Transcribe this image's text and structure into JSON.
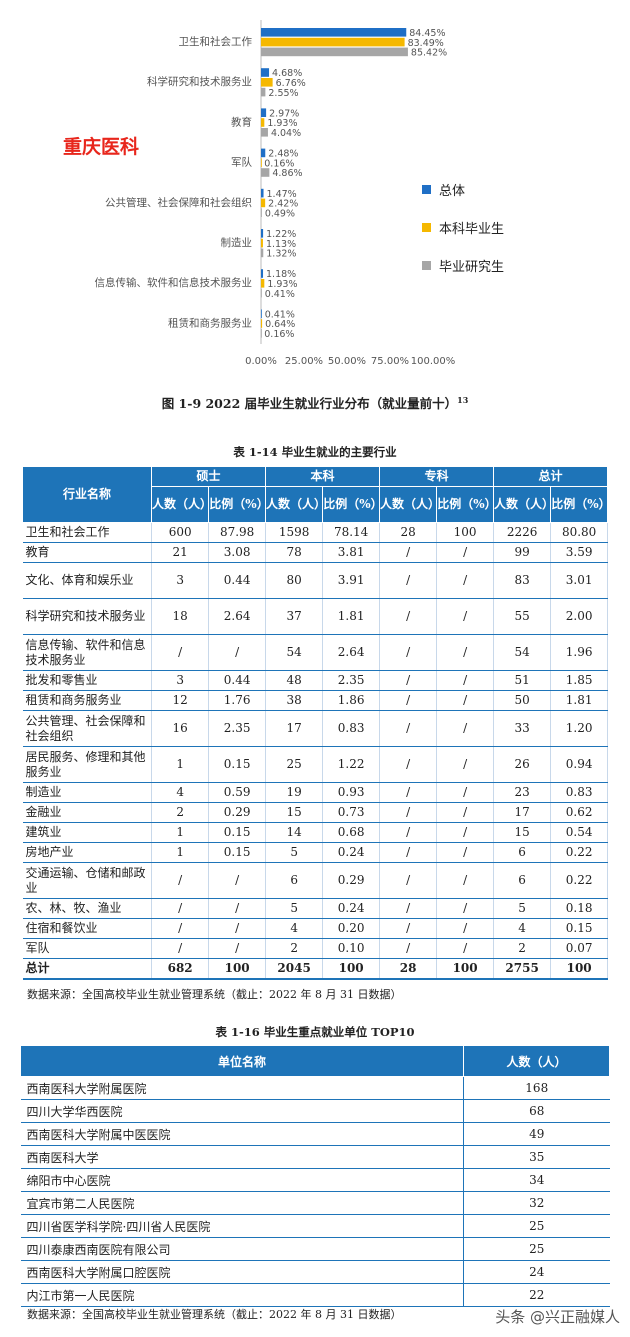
{
  "chart_data": {
    "type": "bar",
    "orientation": "horizontal",
    "categories": [
      "卫生和社会工作",
      "科学研究和技术服务业",
      "教育",
      "军队",
      "公共管理、社会保障和社会组织",
      "制造业",
      "信息传输、软件和信息技术服务业",
      "租赁和商务服务业"
    ],
    "series": [
      {
        "name": "总体",
        "color": "#1f6fc6",
        "values": [
          84.45,
          4.68,
          2.97,
          2.48,
          1.47,
          1.22,
          1.18,
          0.41
        ],
        "labels": [
          "84.45%",
          "4.68%",
          "2.97%",
          "2.48%",
          "1.47%",
          "1.22%",
          "1.18%",
          "0.41%"
        ]
      },
      {
        "name": "本科毕业生",
        "color": "#f5b800",
        "values": [
          83.49,
          6.76,
          1.93,
          0.16,
          2.42,
          1.13,
          1.93,
          0.64
        ],
        "labels": [
          "83.49%",
          "6.76%",
          "1.93%",
          "0.16%",
          "2.42%",
          "1.13%",
          "1.93%",
          "0.64%"
        ]
      },
      {
        "name": "毕业研究生",
        "color": "#a6a6a6",
        "values": [
          85.42,
          2.55,
          4.04,
          4.86,
          0.49,
          1.32,
          0.41,
          0.16
        ],
        "labels": [
          "85.42%",
          "2.55%",
          "4.04%",
          "4.86%",
          "0.49%",
          "1.32%",
          "0.41%",
          "0.16%"
        ]
      }
    ],
    "xticks": [
      "0.00%",
      "25.00%",
      "50.00%",
      "75.00%",
      "100.00%"
    ],
    "xlim": [
      0,
      100
    ],
    "legend": "right"
  },
  "watermark": "重庆医科",
  "figure_caption": "图 1-9 2022 届毕业生就业行业分布（就业量前十）",
  "figure_caption_sup": "13",
  "table1": {
    "caption": "表 1-14 毕业生就业的主要行业",
    "col_name": "行业名称",
    "groups": [
      "硕士",
      "本科",
      "专科",
      "总计"
    ],
    "sub_count": "人数（人）",
    "sub_ratio": "比例（%）",
    "rows": [
      [
        "卫生和社会工作",
        "600",
        "87.98",
        "1598",
        "78.14",
        "28",
        "100",
        "2226",
        "80.80"
      ],
      [
        "教育",
        "21",
        "3.08",
        "78",
        "3.81",
        "/",
        "/",
        "99",
        "3.59"
      ],
      [
        "文化、体育和娱乐业",
        "3",
        "0.44",
        "80",
        "3.91",
        "/",
        "/",
        "83",
        "3.01"
      ],
      [
        "科学研究和技术服务业",
        "18",
        "2.64",
        "37",
        "1.81",
        "/",
        "/",
        "55",
        "2.00"
      ],
      [
        "信息传输、软件和信息技术服务业",
        "/",
        "/",
        "54",
        "2.64",
        "/",
        "/",
        "54",
        "1.96"
      ],
      [
        "批发和零售业",
        "3",
        "0.44",
        "48",
        "2.35",
        "/",
        "/",
        "51",
        "1.85"
      ],
      [
        "租赁和商务服务业",
        "12",
        "1.76",
        "38",
        "1.86",
        "/",
        "/",
        "50",
        "1.81"
      ],
      [
        "公共管理、社会保障和社会组织",
        "16",
        "2.35",
        "17",
        "0.83",
        "/",
        "/",
        "33",
        "1.20"
      ],
      [
        "居民服务、修理和其他服务业",
        "1",
        "0.15",
        "25",
        "1.22",
        "/",
        "/",
        "26",
        "0.94"
      ],
      [
        "制造业",
        "4",
        "0.59",
        "19",
        "0.93",
        "/",
        "/",
        "23",
        "0.83"
      ],
      [
        "金融业",
        "2",
        "0.29",
        "15",
        "0.73",
        "/",
        "/",
        "17",
        "0.62"
      ],
      [
        "建筑业",
        "1",
        "0.15",
        "14",
        "0.68",
        "/",
        "/",
        "15",
        "0.54"
      ],
      [
        "房地产业",
        "1",
        "0.15",
        "5",
        "0.24",
        "/",
        "/",
        "6",
        "0.22"
      ],
      [
        "交通运输、仓储和邮政业",
        "/",
        "/",
        "6",
        "0.29",
        "/",
        "/",
        "6",
        "0.22"
      ],
      [
        "农、林、牧、渔业",
        "/",
        "/",
        "5",
        "0.24",
        "/",
        "/",
        "5",
        "0.18"
      ],
      [
        "住宿和餐饮业",
        "/",
        "/",
        "4",
        "0.20",
        "/",
        "/",
        "4",
        "0.15"
      ],
      [
        "军队",
        "/",
        "/",
        "2",
        "0.10",
        "/",
        "/",
        "2",
        "0.07"
      ]
    ],
    "total": [
      "总计",
      "682",
      "100",
      "2045",
      "100",
      "28",
      "100",
      "2755",
      "100"
    ],
    "source": "数据来源：全国高校毕业生就业管理系统（截止：2022 年 8 月 31 日数据）"
  },
  "table2": {
    "caption": "表 1-16 毕业生重点就业单位 TOP10",
    "headers": [
      "单位名称",
      "人数（人）"
    ],
    "rows": [
      [
        "西南医科大学附属医院",
        "168"
      ],
      [
        "四川大学华西医院",
        "68"
      ],
      [
        "西南医科大学附属中医医院",
        "49"
      ],
      [
        "西南医科大学",
        "35"
      ],
      [
        "绵阳市中心医院",
        "34"
      ],
      [
        "宜宾市第二人民医院",
        "32"
      ],
      [
        "四川省医学科学院·四川省人民医院",
        "25"
      ],
      [
        "四川泰康西南医院有限公司",
        "25"
      ],
      [
        "西南医科大学附属口腔医院",
        "24"
      ],
      [
        "内江市第一人民医院",
        "22"
      ]
    ],
    "source": "数据来源：全国高校毕业生就业管理系统（截止：2022 年 8 月 31 日数据）"
  },
  "corner_watermark": "头条 @兴正融媒人"
}
